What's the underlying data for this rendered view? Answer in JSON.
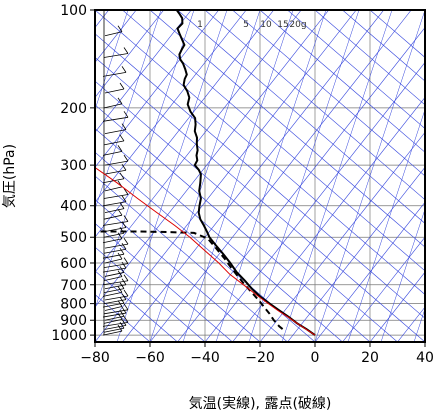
{
  "chart_data": {
    "type": "line",
    "title": "",
    "xlabel": "気温(実線), 露点(破線)",
    "ylabel": "気圧(hPa)",
    "x_ticks": [
      -80,
      -60,
      -40,
      -20,
      0,
      20,
      40
    ],
    "x_tick_labels": [
      "−80",
      "−60",
      "−40",
      "−20",
      "0",
      "20",
      "40"
    ],
    "y_ticks": [
      100,
      200,
      300,
      400,
      500,
      600,
      700,
      800,
      900,
      1000
    ],
    "y_tick_labels": [
      "100",
      "200",
      "300",
      "400",
      "500",
      "600",
      "700",
      "800",
      "900",
      "1000"
    ],
    "xlim": [
      -80,
      40
    ],
    "ylim": [
      1050,
      100
    ],
    "y_scale": "log",
    "grid": true,
    "mixing_ratio_labels": [
      "1",
      "5",
      "10",
      "15",
      "20g"
    ],
    "series": [
      {
        "role": "temperature",
        "style": "solid",
        "color": "#000000",
        "points": [
          [
            -50.3,
            100
          ],
          [
            -49.2,
            103
          ],
          [
            -48.3,
            106
          ],
          [
            -48.2,
            110
          ],
          [
            -50.0,
            114
          ],
          [
            -49.3,
            118
          ],
          [
            -48.2,
            124
          ],
          [
            -47.5,
            128
          ],
          [
            -48.4,
            132
          ],
          [
            -49.3,
            137
          ],
          [
            -49.0,
            142
          ],
          [
            -48.0,
            146
          ],
          [
            -47.2,
            152
          ],
          [
            -46.6,
            158
          ],
          [
            -47.4,
            163
          ],
          [
            -47.8,
            170
          ],
          [
            -46.4,
            178
          ],
          [
            -45.7,
            186
          ],
          [
            -46.3,
            195
          ],
          [
            -45.3,
            205
          ],
          [
            -43.6,
            215
          ],
          [
            -43.4,
            225
          ],
          [
            -43.7,
            236
          ],
          [
            -42.9,
            247
          ],
          [
            -43.0,
            258
          ],
          [
            -42.7,
            270
          ],
          [
            -43.1,
            280
          ],
          [
            -42.8,
            290
          ],
          [
            -43.7,
            300
          ],
          [
            -42.3,
            310
          ],
          [
            -41.5,
            320
          ],
          [
            -41.7,
            340
          ],
          [
            -42.1,
            360
          ],
          [
            -41.5,
            380
          ],
          [
            -42.0,
            400
          ],
          [
            -42.3,
            420
          ],
          [
            -41.7,
            440
          ],
          [
            -40.4,
            460
          ],
          [
            -39.3,
            480
          ],
          [
            -38.4,
            500
          ],
          [
            -36.0,
            530
          ],
          [
            -33.6,
            560
          ],
          [
            -30.8,
            600
          ],
          [
            -28.5,
            640
          ],
          [
            -25.5,
            680
          ],
          [
            -23.0,
            720
          ],
          [
            -20.0,
            760
          ],
          [
            -16.5,
            800
          ],
          [
            -13.0,
            840
          ],
          [
            -9.5,
            880
          ],
          [
            -6.5,
            920
          ],
          [
            -3.0,
            960
          ],
          [
            0.0,
            1000
          ]
        ]
      },
      {
        "role": "dewpoint",
        "style": "dashed",
        "color": "#000000",
        "points": [
          [
            -78.0,
            480
          ],
          [
            -72.0,
            480
          ],
          [
            -64.0,
            480
          ],
          [
            -53.0,
            482
          ],
          [
            -44.0,
            485
          ],
          [
            -39.0,
            505
          ],
          [
            -36.0,
            540
          ],
          [
            -33.0,
            580
          ],
          [
            -30.5,
            620
          ],
          [
            -28.0,
            660
          ],
          [
            -25.5,
            700
          ],
          [
            -23.0,
            740
          ],
          [
            -20.5,
            780
          ],
          [
            -18.5,
            820
          ],
          [
            -16.5,
            860
          ],
          [
            -15.0,
            900
          ],
          [
            -13.0,
            940
          ],
          [
            -11.0,
            970
          ]
        ]
      },
      {
        "role": "parcel",
        "style": "solid",
        "color": "#dd0000",
        "points": [
          [
            0.0,
            1000
          ],
          [
            -3.2,
            960
          ],
          [
            -6.5,
            920
          ],
          [
            -9.8,
            880
          ],
          [
            -13.5,
            840
          ],
          [
            -17.0,
            800
          ],
          [
            -21.5,
            750
          ],
          [
            -26.0,
            700
          ],
          [
            -31.0,
            650
          ],
          [
            -35.0,
            600
          ],
          [
            -40.0,
            550
          ],
          [
            -45.5,
            500
          ],
          [
            -51.0,
            460
          ],
          [
            -57.5,
            420
          ],
          [
            -64.5,
            380
          ],
          [
            -72.0,
            340
          ],
          [
            -80.0,
            305
          ]
        ]
      }
    ]
  }
}
